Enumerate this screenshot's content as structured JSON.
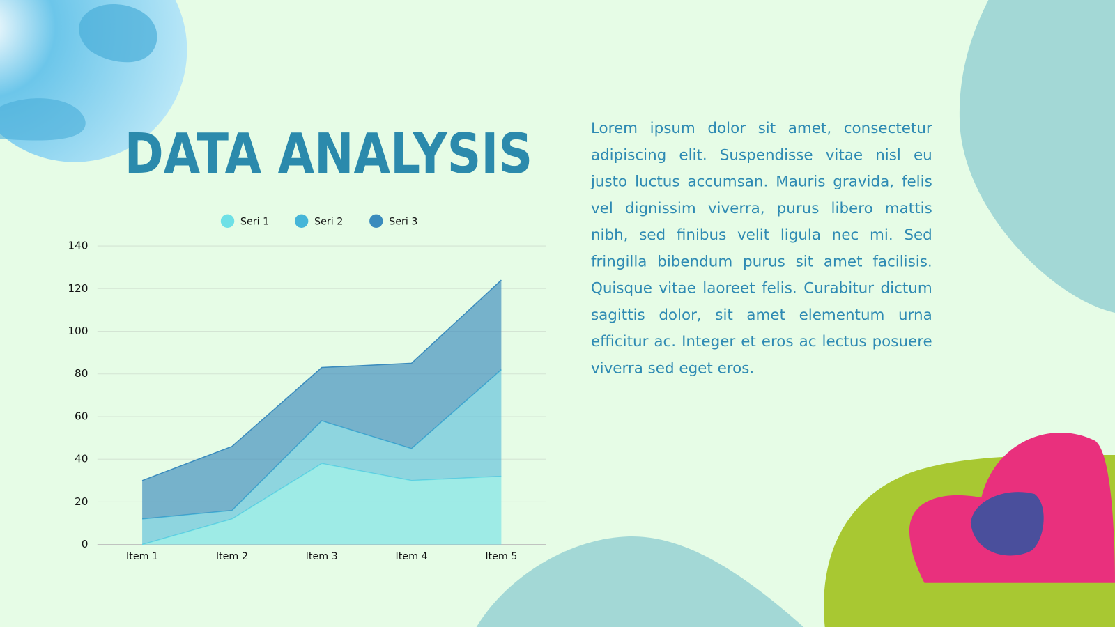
{
  "chart_data": {
    "type": "stacked-area",
    "title": "DATA ANALYSIS",
    "categories": [
      "Item 1",
      "Item 2",
      "Item 3",
      "Item 4",
      "Item 5"
    ],
    "series": [
      {
        "name": "Seri 1",
        "color": "#6ee0e6",
        "values": [
          0,
          12,
          38,
          30,
          32
        ]
      },
      {
        "name": "Seri 2",
        "color": "#45b5d8",
        "values": [
          12,
          4,
          20,
          15,
          50
        ]
      },
      {
        "name": "Seri 3",
        "color": "#3a8bbd",
        "values": [
          18,
          30,
          25,
          40,
          42
        ]
      }
    ],
    "ylim": [
      0,
      140
    ],
    "yticks": [
      0,
      20,
      40,
      60,
      80,
      100,
      120,
      140
    ],
    "grid": true
  },
  "body_text": "Lorem ipsum dolor sit amet, consectetur adipiscing elit. Suspendisse vitae nisl eu justo luctus accumsan. Mauris gravida, felis vel dignissim viverra, purus libero mattis nibh, sed finibus velit ligula nec mi. Sed fringilla bibendum purus sit amet facilisis. Quisque vitae laoreet felis. Curabitur dictum sagittis dolor, sit amet elementum urna efficitur ac. Integer et eros ac lectus posuere viverra sed eget eros."
}
